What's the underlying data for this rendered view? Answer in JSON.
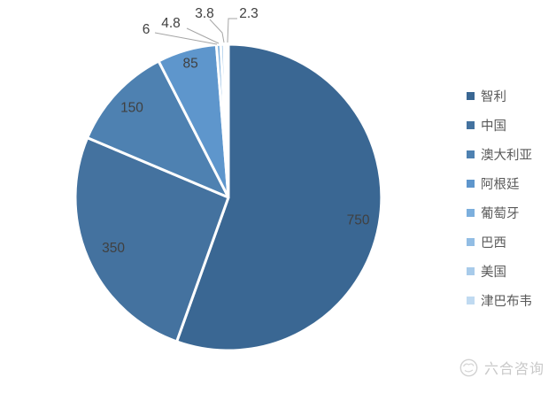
{
  "chart_data": {
    "type": "pie",
    "categories": [
      "智利",
      "中国",
      "澳大利亚",
      "阿根廷",
      "葡萄牙",
      "巴西",
      "美国",
      "津巴布韦"
    ],
    "values": [
      750,
      350,
      150,
      85,
      6,
      4.8,
      3.8,
      2.3
    ],
    "data_labels": [
      "750",
      "350",
      "150",
      "85",
      "6",
      "4.8",
      "3.8",
      "2.3"
    ],
    "colors": [
      "#3A6793",
      "#44729F",
      "#4E81B1",
      "#5E96CC",
      "#7CAFDD",
      "#92BDE4",
      "#A8CBEA",
      "#C0DAF1"
    ],
    "title": "",
    "legend_position": "right",
    "direction": "clockwise",
    "start_angle_deg": 0,
    "label_color": "#404040",
    "legend_text_color": "#595959",
    "leader_line_color": "#A6A6A6",
    "slice_border_color": "#FFFFFF"
  },
  "footer": {
    "brand": "六合咨询"
  }
}
